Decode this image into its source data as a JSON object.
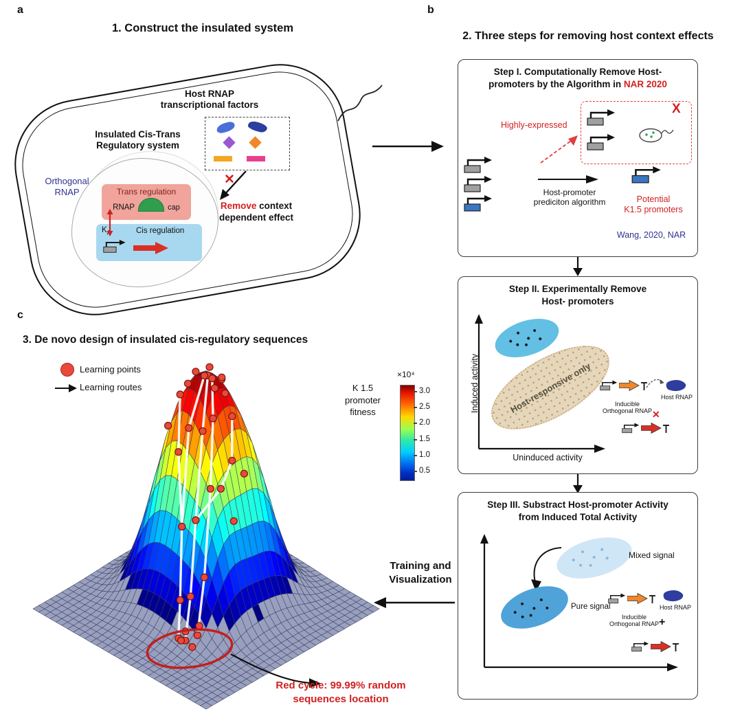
{
  "colors": {
    "accent_red": "#d21f1f",
    "cite_navy": "#2e3192",
    "promoter_gray": "#a0a0a0",
    "promoter_blue": "#3a76c4",
    "gene_orange": "#f0872a",
    "gene_red": "#d93025",
    "host_blob": "#2f3d9e",
    "surface_base": "#99a0bf",
    "learning_point": "#e8493b"
  },
  "panel_a": {
    "letter": "a",
    "title": "1. Construct the insulated system",
    "host_tf": "Host RNAP\ntranscriptional factors",
    "insulated": "Insulated Cis-Trans\nRegulatory system",
    "orthogonal": "Orthogonal\nRNAP",
    "trans": "Trans regulation",
    "rnap": "RNAP",
    "cap": "cap",
    "ka_k": "K",
    "ka_sub": "A",
    "cis": "Cis regulation",
    "remove_accent": "Remove",
    "remove_rest": " context",
    "remove_l2": "dependent effect",
    "x_mark": "✕"
  },
  "panel_b": {
    "letter": "b",
    "title": "2. Three steps for removing host context effects",
    "step1": {
      "title_l1": "Step I. Computationally Remove Host-",
      "title_l2": "promoters by the Algorithm in ",
      "title_accent": "NAR 2020",
      "highly": "Highly-expressed",
      "x_mark": "X",
      "algo": "Host-promoter\nprediciton algorithm",
      "potential": "Potential\nK1.5 promoters",
      "cite": "Wang, 2020, NAR"
    },
    "step2": {
      "title": "Step II. Experimentally Remove\nHost- promoters",
      "y_axis": "Induced activity",
      "x_axis": "Uninduced activity",
      "host_responsive": "Host-responsive only",
      "inducible": "Inducible\nOrthogonal RNAP",
      "host_rnap": "Host RNAP",
      "x_mark": "✕"
    },
    "step3": {
      "title": "Step III. Substract Host-promoter Activity\nfrom Induced Total Activity",
      "mixed": "Mixed signal",
      "pure": "Pure signal",
      "inducible": "Inducible\nOrthogonal RNAP",
      "host_rnap": "Host RNAP",
      "plus": "+"
    },
    "training": "Training and\nVisualization"
  },
  "panel_c": {
    "letter": "c",
    "title": "3. De novo design of insulated cis-regulatory sequences",
    "legend_points": "Learning points",
    "legend_routes": "Learning routes",
    "fitness_label": "K 1.5\npromoter\nfitness",
    "colorbar_exp": "×10⁴",
    "colorbar_ticks": [
      "3.0",
      "2.5",
      "2.0",
      "1.5",
      "1.0",
      "0.5"
    ],
    "red_note": "Red cycle: 99.99% random\nsequences location"
  }
}
